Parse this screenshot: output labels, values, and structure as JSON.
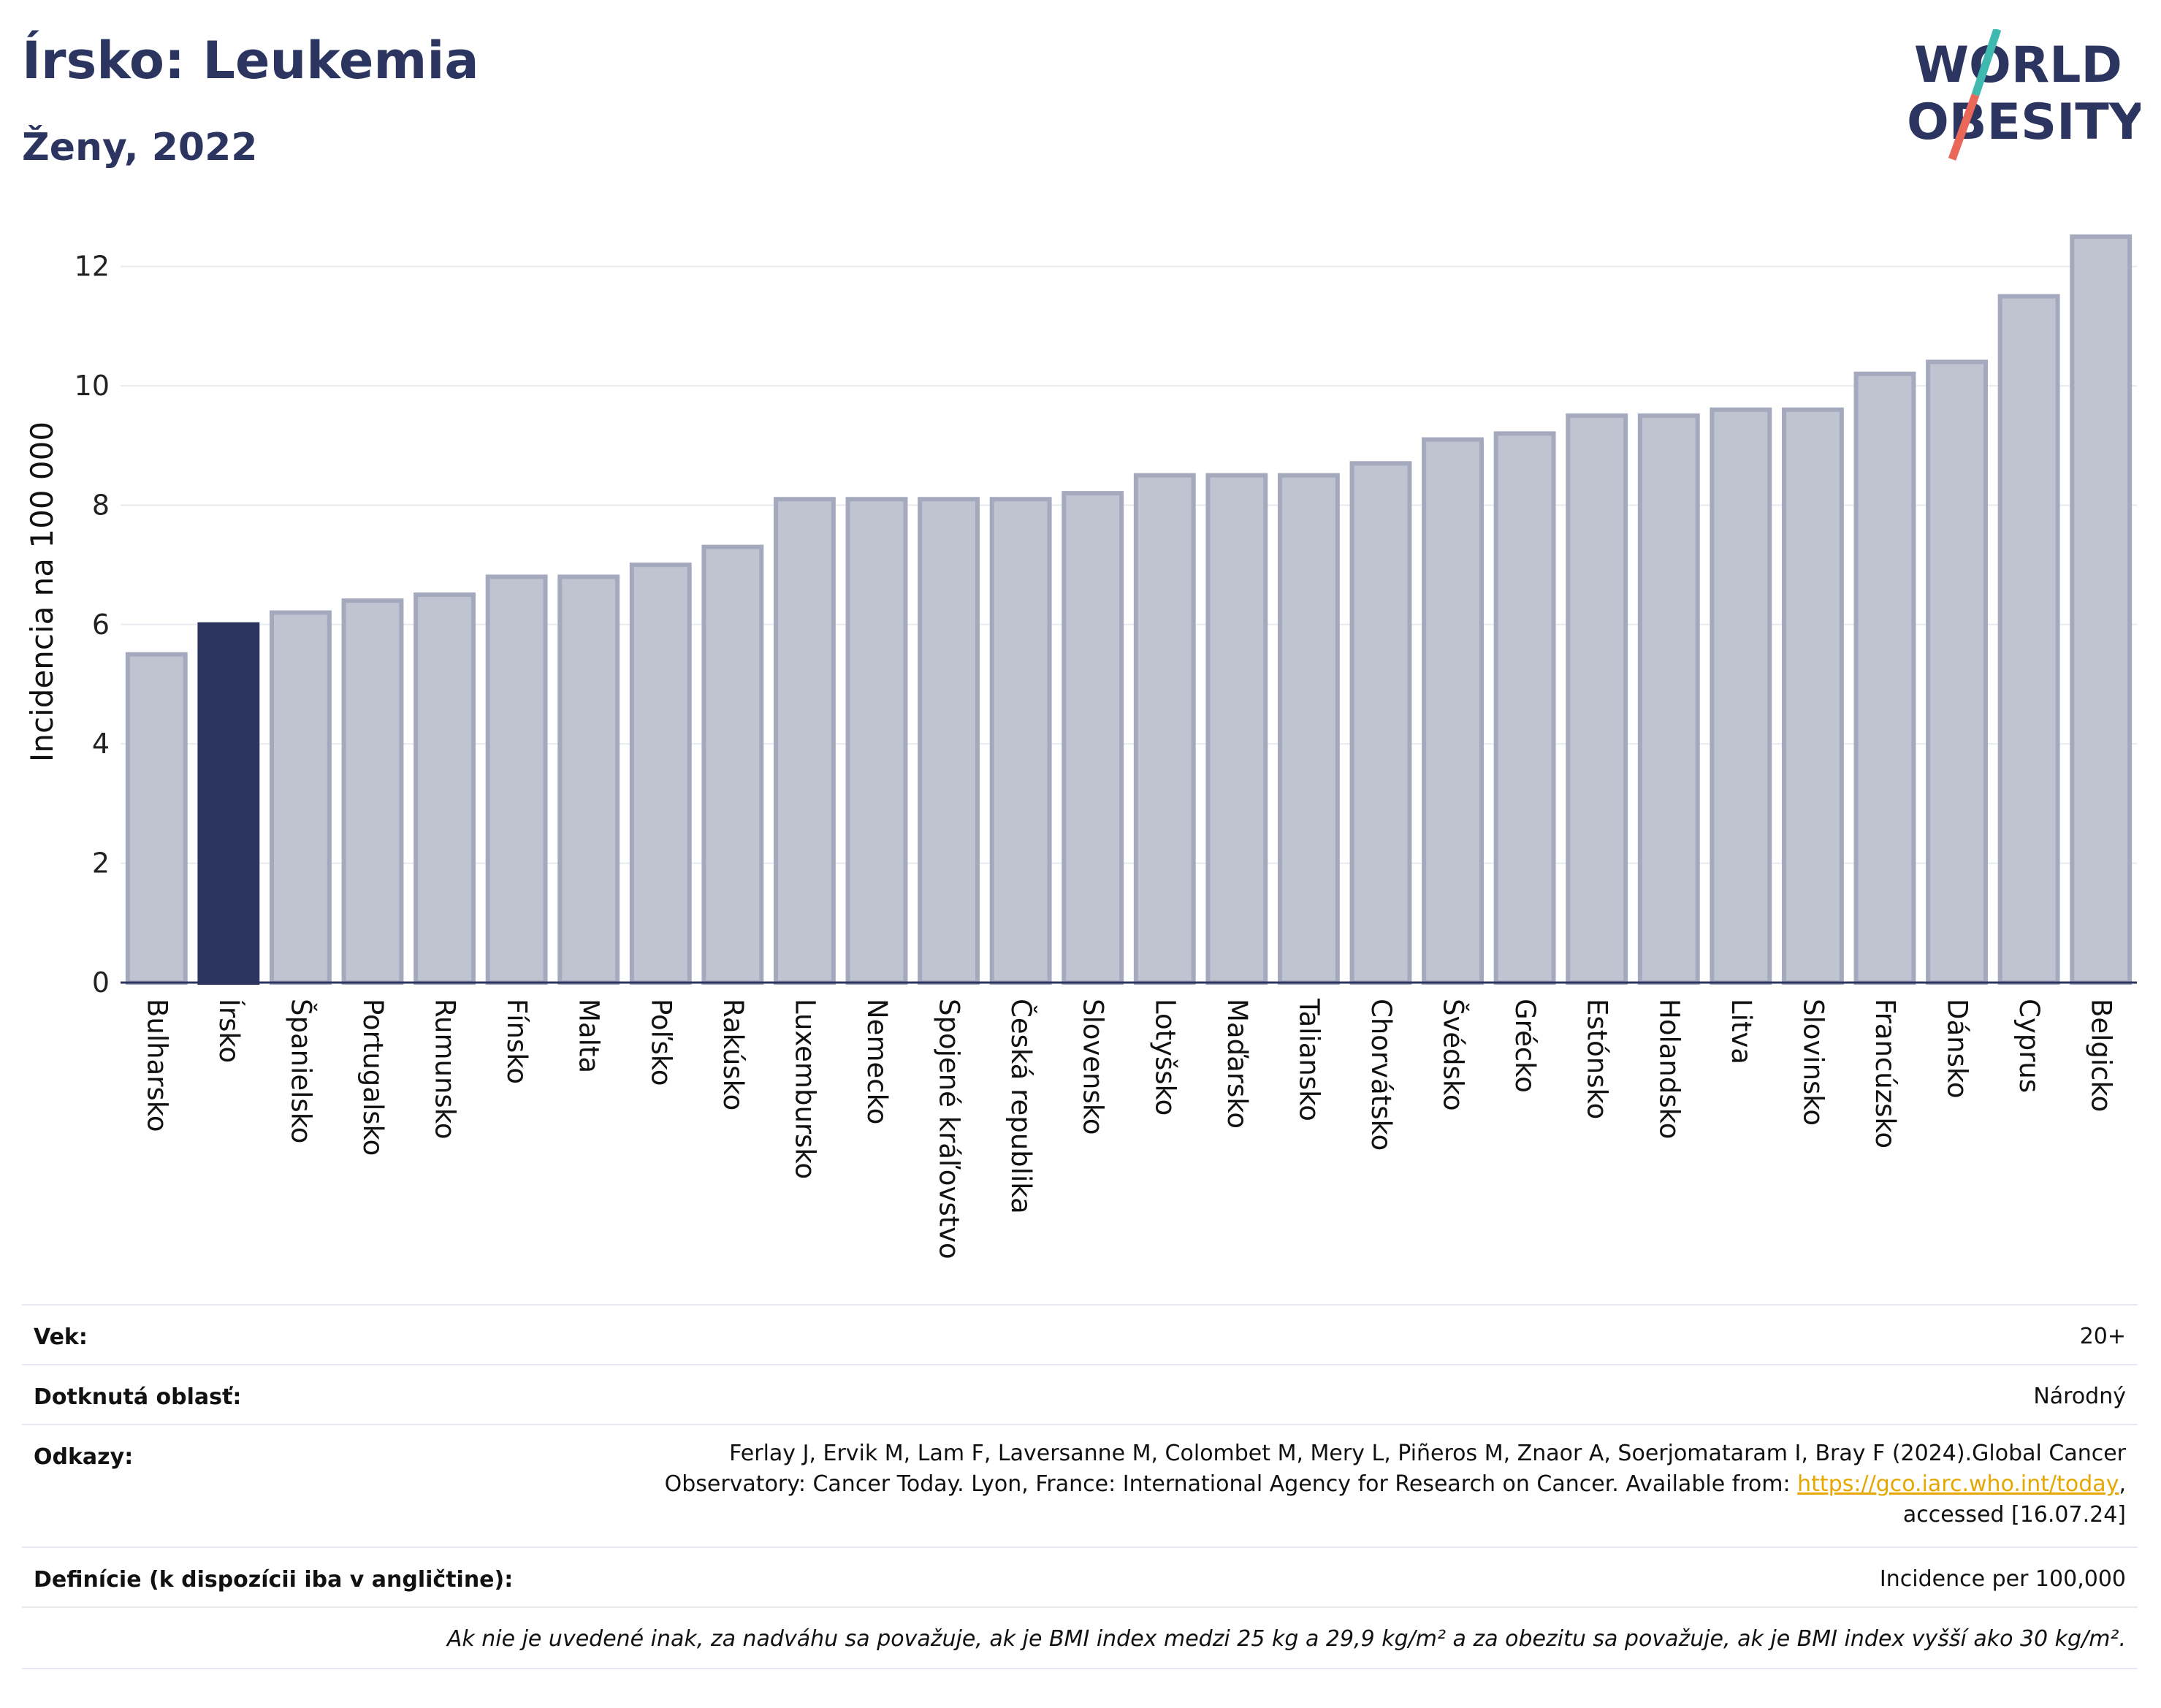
{
  "header": {
    "title": "Írsko: Leukemia",
    "subtitle": "Ženy, 2022",
    "logo_line1": "WORLD",
    "logo_line2": "OBESITY"
  },
  "colors": {
    "highlight": "#2b3560",
    "bar": "#c0c3d0",
    "bar_border": "#a4a9bd",
    "title": "#2b3560",
    "logo_teal": "#3fb8b0",
    "logo_red": "#e9685a"
  },
  "chart_data": {
    "type": "bar",
    "ylabel": "Incidencia na 100 000",
    "ylim": [
      0,
      13
    ],
    "yticks": [
      0,
      2,
      4,
      6,
      8,
      10,
      12
    ],
    "grid": true,
    "highlight": "Írsko",
    "categories": [
      "Bulharsko",
      "Írsko",
      "Španielsko",
      "Portugalsko",
      "Rumunsko",
      "Fínsko",
      "Malta",
      "Poľsko",
      "Rakúsko",
      "Luxembursko",
      "Nemecko",
      "Spojené kráľovstvo",
      "Česká republika",
      "Slovensko",
      "Lotyšsko",
      "Maďarsko",
      "Taliansko",
      "Chorvátsko",
      "Švédsko",
      "Grécko",
      "Estónsko",
      "Holandsko",
      "Litva",
      "Slovinsko",
      "Francúzsko",
      "Dánsko",
      "Cyprus",
      "Belgicko"
    ],
    "values": [
      5.5,
      6.0,
      6.2,
      6.4,
      6.5,
      6.8,
      6.8,
      7.0,
      7.3,
      8.1,
      8.1,
      8.1,
      8.1,
      8.2,
      8.5,
      8.5,
      8.5,
      8.7,
      9.1,
      9.2,
      9.5,
      9.5,
      9.6,
      9.6,
      10.2,
      10.4,
      11.5,
      12.5
    ]
  },
  "info": {
    "age_label": "Vek:",
    "age_value": "20+",
    "area_label": "Dotknutá oblasť:",
    "area_value": "Národný",
    "refs_label": "Odkazy:",
    "refs_line1": "Ferlay J, Ervik M, Lam F, Laversanne M, Colombet M, Mery L, Piñeros M, Znaor A, Soerjomataram I, Bray F (2024).Global Cancer",
    "refs_line2_pre": "Observatory: Cancer Today. Lyon, France: International Agency for Research on Cancer. Available from: ",
    "refs_link": "https://gco.iarc.who.int/today",
    "refs_line2_post": ",",
    "refs_line3": "accessed [16.07.24]",
    "def_label": "Definície (k dispozícii iba v angličtine):",
    "def_value": "Incidence per 100,000",
    "note": "Ak nie je uvedené inak, za nadváhu sa považuje, ak je BMI index medzi 25 kg a 29,9 kg/m² a za obezitu sa považuje, ak je BMI index vyšší ako 30 kg/m²."
  }
}
